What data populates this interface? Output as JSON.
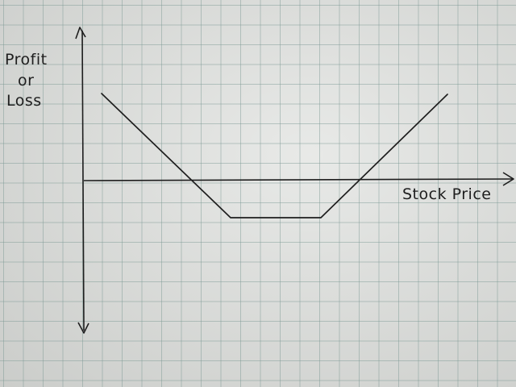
{
  "diagram": {
    "y_axis_label_lines": [
      "Profit",
      "or",
      "Loss"
    ],
    "x_axis_label": "Stock Price",
    "ink_color": "#1e1e1e",
    "paper_color": "#dcdedb",
    "grid_color": "#7f9692"
  }
}
